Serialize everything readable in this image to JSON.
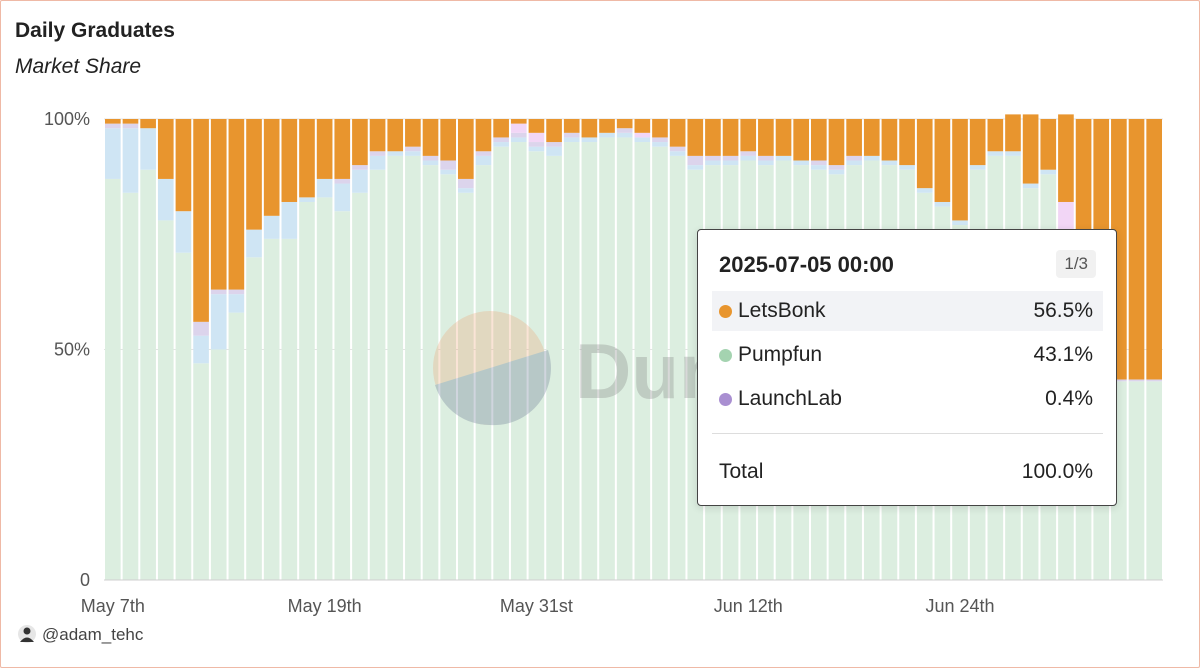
{
  "title": "Daily Graduates",
  "subtitle": "Market Share",
  "footer": {
    "handle": "@adam_tehc"
  },
  "watermark": {
    "text": "Dun"
  },
  "colors": {
    "LetsBonk": "#e8952e",
    "Pumpfun": "#dceee0",
    "LaunchLab": "#dcd4ec",
    "Other": "#cfe5f4",
    "Extra": "#f2d6f6"
  },
  "tooltip": {
    "date": "2025-07-05 00:00",
    "page": "1/3",
    "rows": [
      {
        "name": "LetsBonk",
        "value": "56.5%",
        "color": "#e8952e"
      },
      {
        "name": "Pumpfun",
        "value": "43.1%",
        "color": "#a4d3b0"
      },
      {
        "name": "LaunchLab",
        "value": "0.4%",
        "color": "#a98fd1"
      }
    ],
    "total_label": "Total",
    "total_value": "100.0%"
  },
  "chart_data": {
    "type": "bar",
    "stacked": true,
    "percent": true,
    "title": "Daily Graduates",
    "subtitle": "Market Share",
    "y_ticks": [
      "0",
      "50%",
      "100%"
    ],
    "x_ticks": [
      "May 7th",
      "May 19th",
      "May 31st",
      "Jun 12th",
      "Jun 24th"
    ],
    "ylim": [
      0,
      100
    ],
    "categories": [
      "May 7",
      "May 8",
      "May 9",
      "May 10",
      "May 11",
      "May 12",
      "May 13",
      "May 14",
      "May 15",
      "May 16",
      "May 17",
      "May 18",
      "May 19",
      "May 20",
      "May 21",
      "May 22",
      "May 23",
      "May 24",
      "May 25",
      "May 26",
      "May 27",
      "May 28",
      "May 29",
      "May 30",
      "May 31",
      "Jun 1",
      "Jun 2",
      "Jun 3",
      "Jun 4",
      "Jun 5",
      "Jun 6",
      "Jun 7",
      "Jun 8",
      "Jun 9",
      "Jun 10",
      "Jun 11",
      "Jun 12",
      "Jun 13",
      "Jun 14",
      "Jun 15",
      "Jun 16",
      "Jun 17",
      "Jun 18",
      "Jun 19",
      "Jun 20",
      "Jun 21",
      "Jun 22",
      "Jun 23",
      "Jun 24",
      "Jun 25",
      "Jun 26",
      "Jun 27",
      "Jun 28",
      "Jun 29",
      "Jun 30",
      "Jul 1",
      "Jul 2",
      "Jul 3",
      "Jul 4",
      "Jul 5"
    ],
    "series": [
      {
        "name": "Pumpfun",
        "values": [
          87,
          84,
          89,
          78,
          71,
          47,
          50,
          58,
          70,
          74,
          74,
          82,
          83,
          80,
          84,
          89,
          92,
          92,
          90,
          88,
          84,
          90,
          94,
          95,
          93,
          92,
          95,
          95,
          96,
          96,
          95,
          94,
          92,
          89,
          90,
          90,
          91,
          90,
          91,
          90,
          89,
          88,
          90,
          91,
          90,
          89,
          84,
          81,
          77,
          89,
          92,
          92,
          85,
          88,
          75,
          66,
          66,
          43.1,
          43.1,
          43.1
        ]
      },
      {
        "name": "Other",
        "values": [
          11,
          14,
          9,
          9,
          9,
          6,
          12,
          4,
          6,
          5,
          8,
          1,
          4,
          6,
          5,
          3,
          1,
          1,
          1,
          1,
          1,
          2,
          1,
          1,
          1,
          2,
          1,
          1,
          1,
          1,
          1,
          1,
          1,
          1,
          1,
          1,
          1,
          1,
          1,
          1,
          1,
          1,
          1,
          1,
          1,
          1,
          1,
          1,
          1,
          1,
          1,
          1,
          1,
          1,
          1,
          1,
          1,
          0,
          0,
          0
        ]
      },
      {
        "name": "LaunchLab",
        "values": [
          1,
          1,
          0,
          0,
          0,
          3,
          1,
          1,
          0,
          0,
          0,
          0,
          0,
          1,
          1,
          1,
          0,
          1,
          1,
          2,
          2,
          1,
          1,
          1,
          1,
          1,
          1,
          0,
          0,
          1,
          0,
          1,
          1,
          2,
          1,
          1,
          1,
          1,
          0,
          0,
          1,
          1,
          1,
          0,
          0,
          0,
          0,
          0,
          0,
          0,
          0,
          0,
          0,
          0,
          0,
          0,
          0,
          0.4,
          0.4,
          0.4
        ]
      },
      {
        "name": "Extra",
        "values": [
          0,
          0,
          0,
          0,
          0,
          0,
          0,
          0,
          0,
          0,
          0,
          0,
          0,
          0,
          0,
          0,
          0,
          0,
          0,
          0,
          0,
          0,
          0,
          2,
          2,
          0,
          0,
          0,
          0,
          0,
          1,
          0,
          0,
          0,
          0,
          0,
          0,
          0,
          0,
          0,
          0,
          0,
          0,
          0,
          0,
          0,
          0,
          0,
          0,
          0,
          0,
          0,
          0,
          0,
          6,
          8,
          5,
          0,
          0,
          0
        ]
      },
      {
        "name": "LetsBonk",
        "values": [
          1,
          1,
          2,
          13,
          20,
          44,
          37,
          37,
          24,
          21,
          18,
          17,
          13,
          13,
          10,
          7,
          7,
          6,
          8,
          9,
          13,
          7,
          4,
          1,
          3,
          5,
          3,
          4,
          3,
          2,
          3,
          4,
          6,
          8,
          8,
          8,
          7,
          8,
          8,
          9,
          9,
          10,
          8,
          8,
          9,
          10,
          15,
          18,
          22,
          10,
          7,
          8,
          15,
          11,
          19,
          25,
          28,
          56.5,
          56.5,
          56.5
        ]
      }
    ]
  }
}
